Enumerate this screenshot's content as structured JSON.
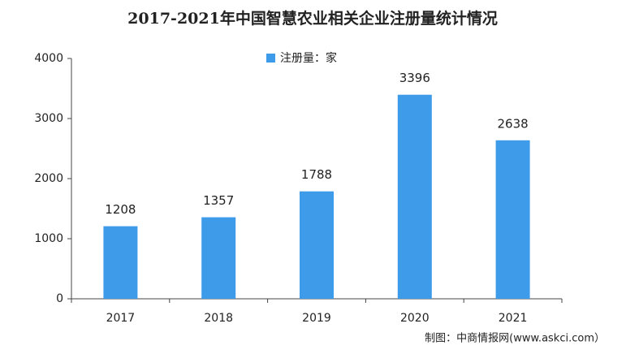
{
  "chart_data": {
    "type": "bar",
    "title": "2017-2021年中国智慧农业相关企业注册量统计情况",
    "categories": [
      "2017",
      "2018",
      "2019",
      "2020",
      "2021"
    ],
    "series": [
      {
        "name": "注册量：家",
        "color": "#3d9be9",
        "values": [
          1208,
          1357,
          1788,
          3396,
          2638
        ]
      }
    ],
    "ylim": [
      0,
      4000
    ],
    "yticks": [
      0,
      1000,
      2000,
      3000,
      4000
    ],
    "grid": false,
    "legend": "top",
    "source": "制图：中商情报网(www.askci.com）"
  }
}
